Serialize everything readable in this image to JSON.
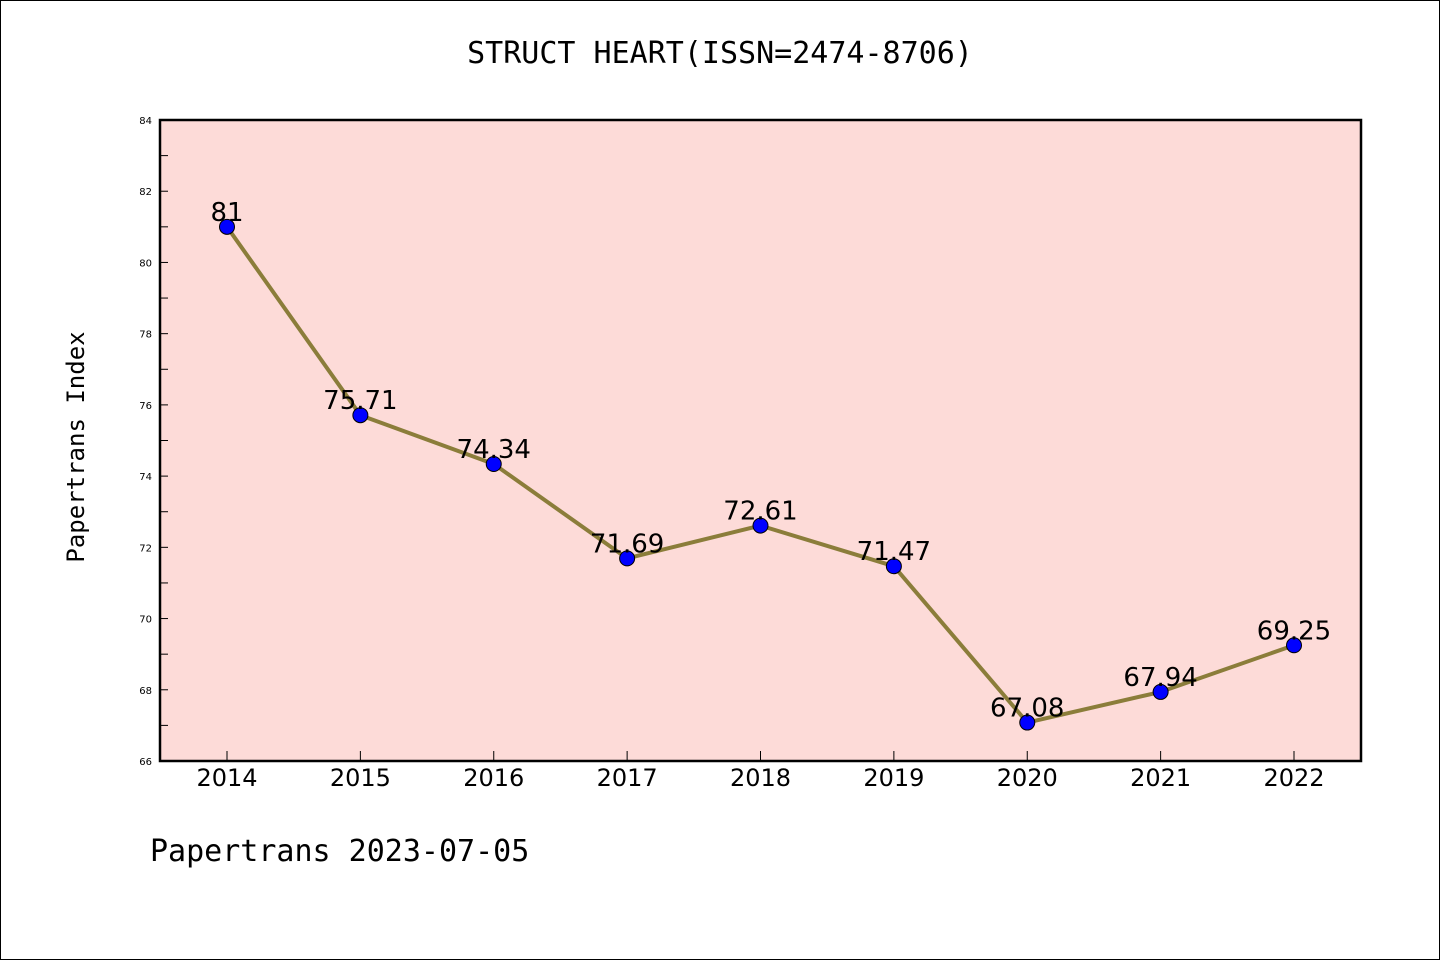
{
  "page": {
    "title": "STRUCT HEART(ISSN=2474-8706)",
    "footer": "Papertrans 2023-07-05"
  },
  "chart_data": {
    "type": "line",
    "title": "STRUCT HEART(ISSN=2474-8706)",
    "xlabel": "",
    "ylabel": "Papertrans Index",
    "categories": [
      "2014",
      "2015",
      "2016",
      "2017",
      "2018",
      "2019",
      "2020",
      "2021",
      "2022"
    ],
    "series": [
      {
        "values": [
          81,
          75.71,
          74.34,
          71.69,
          72.61,
          71.47,
          67.08,
          67.94,
          69.25
        ],
        "data_labels": [
          "81",
          "75.71",
          "74.34",
          "71.69",
          "72.61",
          "71.47",
          "67.08",
          "67.94",
          "69.25"
        ]
      }
    ],
    "ylim": [
      66,
      84
    ],
    "yticks": [
      "66",
      "68",
      "70",
      "72",
      "74",
      "76",
      "78",
      "80",
      "82",
      "84"
    ],
    "grid": false,
    "colors": {
      "plot_background": "#fddbd8",
      "line": "#8b7d3a",
      "marker": "#0000ff"
    }
  }
}
